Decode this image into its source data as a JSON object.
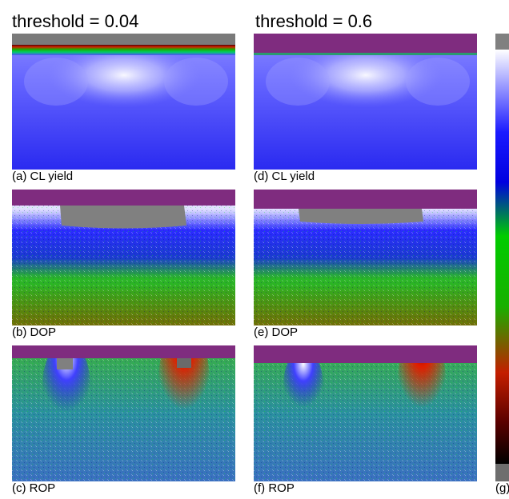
{
  "columns": [
    {
      "title": "threshold = 0.04"
    },
    {
      "title": "threshold = 0.6"
    }
  ],
  "panels": [
    {
      "caption": "(a) CL yield",
      "kind": "cl",
      "cap_color": "#8a8a8a"
    },
    {
      "caption": "(b) DOP",
      "kind": "dop",
      "cap_color": "#7f2c7f"
    },
    {
      "caption": "(c) ROP",
      "kind": "rop",
      "cap_color": "#7f2c7f"
    },
    {
      "caption": "(d) CL yield",
      "kind": "cl",
      "cap_color": "#7f2c7f"
    },
    {
      "caption": "(e) DOP",
      "kind": "dop",
      "cap_color": "#7f2c7f"
    },
    {
      "caption": "(f) ROP",
      "kind": "rop",
      "cap_color": "#7f2c7f"
    }
  ],
  "colorbar": {
    "caption": "(g)",
    "top_color": "#808080",
    "bottom_color": "#6e6e6e",
    "stops": [
      "#ffffff",
      "#1a1aff",
      "#0000e0",
      "#00cc00",
      "#18b000",
      "#c41e00",
      "#5a0000",
      "#000000"
    ]
  }
}
